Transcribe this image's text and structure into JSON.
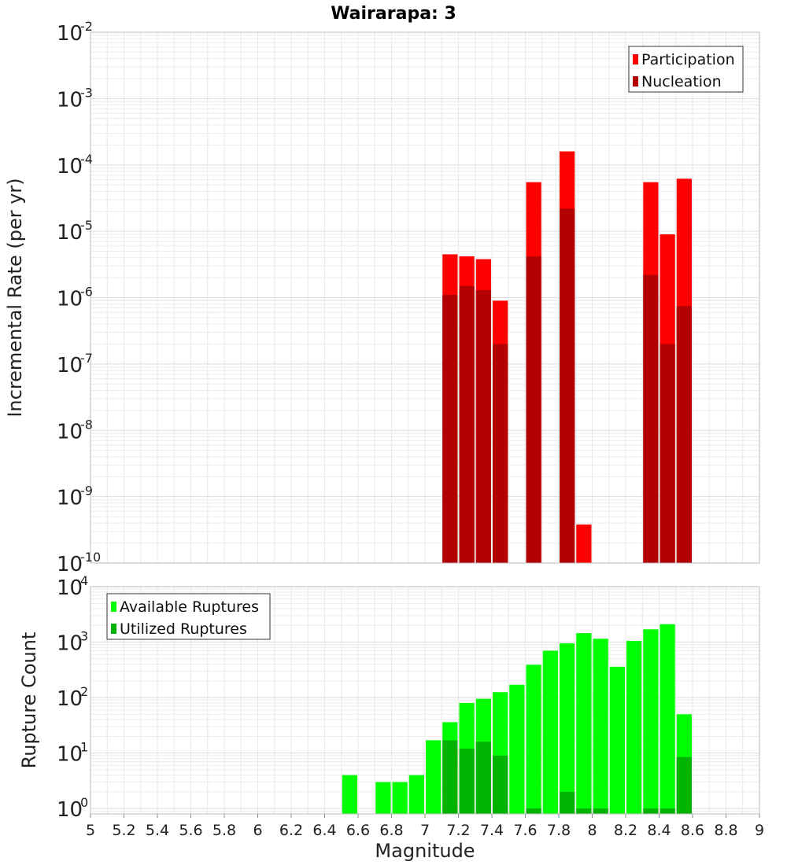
{
  "title": "Wairarapa: 3",
  "colors": {
    "participation": "#ff0000",
    "nucleation": "#b30000",
    "available": "#00ff00",
    "utilized": "#00b300"
  },
  "chart_data": [
    {
      "type": "bar",
      "name": "rate",
      "ylabel": "Incremental Rate (per yr)",
      "yscale": "log",
      "ylim": [
        1e-10,
        0.01
      ],
      "xlim": [
        5,
        9
      ],
      "grid": true,
      "legend_position": "top-right",
      "series": [
        {
          "name": "Participation",
          "x": [
            7.15,
            7.25,
            7.35,
            7.45,
            7.65,
            7.85,
            7.95,
            8.35,
            8.45,
            8.55
          ],
          "values": [
            4.5e-06,
            4.2e-06,
            3.8e-06,
            9e-07,
            5.5e-05,
            0.00016,
            3.8e-10,
            5.5e-05,
            9e-06,
            6.2e-05
          ]
        },
        {
          "name": "Nucleation",
          "x": [
            7.15,
            7.25,
            7.35,
            7.45,
            7.65,
            7.85,
            7.95,
            8.35,
            8.45,
            8.55
          ],
          "values": [
            1.1e-06,
            1.5e-06,
            1.3e-06,
            2e-07,
            4.2e-06,
            2.2e-05,
            1e-10,
            2.2e-06,
            2e-07,
            7.5e-07
          ]
        }
      ]
    },
    {
      "type": "bar",
      "name": "count",
      "xlabel": "Magnitude",
      "ylabel": "Rupture Count",
      "yscale": "log",
      "ylim": [
        0.8,
        10000.0
      ],
      "xlim": [
        5,
        9
      ],
      "grid": true,
      "legend_position": "top-left",
      "xticks": [
        "5",
        "5.2",
        "5.4",
        "5.6",
        "5.8",
        "6",
        "6.2",
        "6.4",
        "6.6",
        "6.8",
        "7",
        "7.2",
        "7.4",
        "7.6",
        "7.8",
        "8",
        "8.2",
        "8.4",
        "8.6",
        "8.8",
        "9"
      ],
      "series": [
        {
          "name": "Available Ruptures",
          "x": [
            6.55,
            6.75,
            6.85,
            6.95,
            7.05,
            7.15,
            7.25,
            7.35,
            7.45,
            7.55,
            7.65,
            7.75,
            7.85,
            7.95,
            8.05,
            8.15,
            8.25,
            8.35,
            8.45,
            8.55
          ],
          "values": [
            4,
            3,
            3,
            4,
            17,
            36,
            80,
            95,
            125,
            170,
            390,
            700,
            950,
            1450,
            1150,
            360,
            1050,
            1700,
            2100,
            50
          ]
        },
        {
          "name": "Utilized Ruptures",
          "x": [
            7.15,
            7.25,
            7.35,
            7.45,
            7.65,
            7.85,
            7.95,
            8.05,
            8.35,
            8.45,
            8.55
          ],
          "values": [
            17,
            12,
            16,
            9,
            1,
            2,
            1,
            1,
            1,
            1,
            8.5
          ]
        }
      ]
    }
  ]
}
